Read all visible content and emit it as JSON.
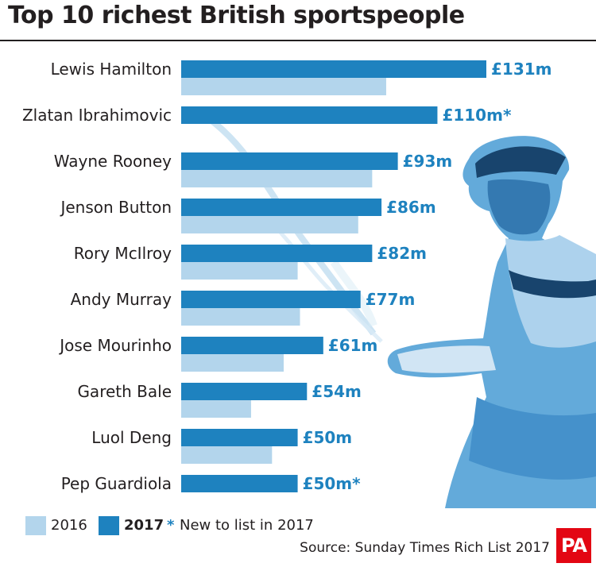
{
  "title": "Top 10 richest British sportspeople",
  "source": "Source: Sunday Times Rich List 2017",
  "logo": "PA",
  "colors": {
    "series_2016": "#b3d5ec",
    "series_2017": "#1e82bf",
    "value_text": "#1e82bf"
  },
  "legend": {
    "item_2016": "2016",
    "item_2017": "2017",
    "note_marker": "*",
    "note_text": "New to list in 2017"
  },
  "chart_data": {
    "type": "bar",
    "orientation": "horizontal",
    "categories": [
      "Lewis Hamilton",
      "Zlatan Ibrahimovic",
      "Wayne Rooney",
      "Jenson Button",
      "Rory McIlroy",
      "Andy Murray",
      "Jose Mourinho",
      "Gareth Bale",
      "Luol Deng",
      "Pep Guardiola"
    ],
    "series": [
      {
        "name": "2017",
        "values": [
          131,
          110,
          93,
          86,
          82,
          77,
          61,
          54,
          50,
          50
        ]
      },
      {
        "name": "2016",
        "values": [
          88,
          null,
          82,
          76,
          50,
          51,
          44,
          30,
          39,
          null
        ]
      }
    ],
    "value_labels": [
      "£131m",
      "£110m*",
      "£93m",
      "£86m",
      "£82m",
      "£77m",
      "£61m",
      "£54m",
      "£50m",
      "£50m*"
    ],
    "xlim": [
      0,
      131
    ],
    "grid": false,
    "legend_position": "bottom-left"
  }
}
